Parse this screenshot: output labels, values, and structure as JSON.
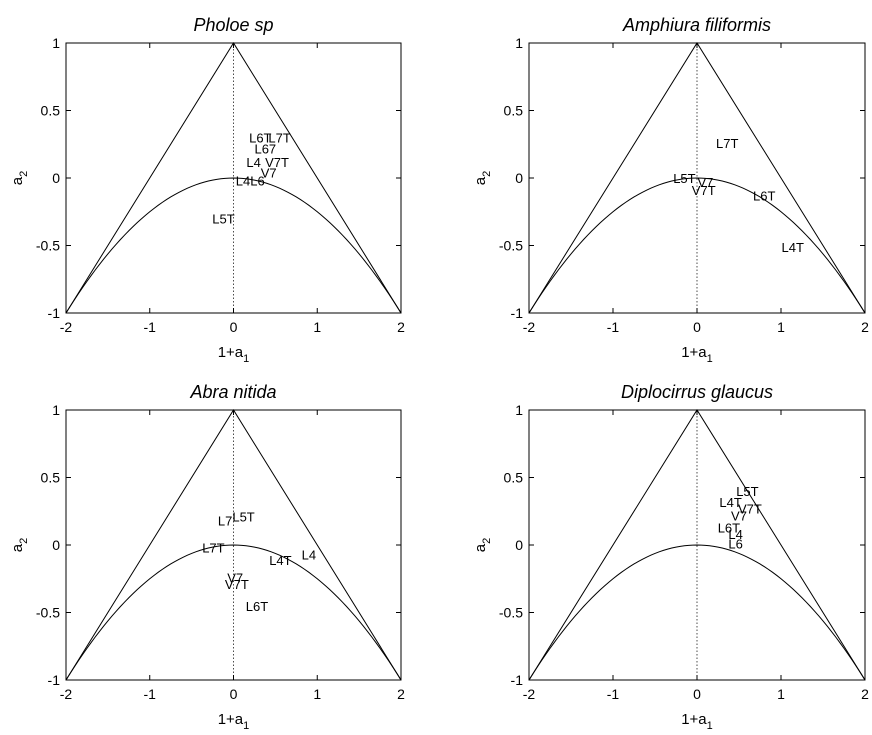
{
  "chart_data": [
    {
      "type": "scatter",
      "title": "Pholoe sp",
      "xlabel": "1+a1",
      "ylabel": "a2",
      "xlim": [
        -2,
        2
      ],
      "ylim": [
        -1,
        1
      ],
      "xticks": [
        "-2",
        "-1",
        "0",
        "1",
        "2"
      ],
      "yticks": [
        "-1",
        "-0.5",
        "0",
        "0.5",
        "1"
      ],
      "grid": false,
      "reference_curves": [
        "triangle",
        "parabola",
        "vertical-dotted-line-x0"
      ],
      "points": [
        {
          "label": "L6T",
          "x": 0.32,
          "y": 0.3
        },
        {
          "label": "L7T",
          "x": 0.55,
          "y": 0.3
        },
        {
          "label": "L67",
          "x": 0.38,
          "y": 0.22
        },
        {
          "label": "L4",
          "x": 0.24,
          "y": 0.12
        },
        {
          "label": "V7T",
          "x": 0.52,
          "y": 0.12
        },
        {
          "label": "V7",
          "x": 0.42,
          "y": 0.04
        },
        {
          "label": "L4L6",
          "x": 0.2,
          "y": -0.02
        },
        {
          "label": "L5T",
          "x": -0.12,
          "y": -0.3
        }
      ]
    },
    {
      "type": "scatter",
      "title": "Amphiura filiformis",
      "xlabel": "1+a1",
      "ylabel": "a2",
      "xlim": [
        -2,
        2
      ],
      "ylim": [
        -1,
        1
      ],
      "xticks": [
        "-2",
        "-1",
        "0",
        "1",
        "2"
      ],
      "yticks": [
        "-1",
        "-0.5",
        "0",
        "0.5",
        "1"
      ],
      "grid": false,
      "reference_curves": [
        "triangle",
        "parabola",
        "vertical-dotted-line-x0"
      ],
      "points": [
        {
          "label": "L7T",
          "x": 0.36,
          "y": 0.26
        },
        {
          "label": "L5T",
          "x": -0.15,
          "y": 0.0
        },
        {
          "label": "V7",
          "x": 0.1,
          "y": -0.03
        },
        {
          "label": "V7T",
          "x": 0.08,
          "y": -0.09
        },
        {
          "label": "L6T",
          "x": 0.8,
          "y": -0.13
        },
        {
          "label": "L4T",
          "x": 1.14,
          "y": -0.51
        }
      ]
    },
    {
      "type": "scatter",
      "title": "Abra nitida",
      "xlabel": "1+a1",
      "ylabel": "a2",
      "xlim": [
        -2,
        2
      ],
      "ylim": [
        -1,
        1
      ],
      "xticks": [
        "-2",
        "-1",
        "0",
        "1",
        "2"
      ],
      "yticks": [
        "-1",
        "-0.5",
        "0",
        "0.5",
        "1"
      ],
      "grid": false,
      "reference_curves": [
        "triangle",
        "parabola",
        "vertical-dotted-line-x0"
      ],
      "points": [
        {
          "label": "L7",
          "x": -0.1,
          "y": 0.18
        },
        {
          "label": "L5T",
          "x": 0.12,
          "y": 0.21
        },
        {
          "label": "L7T",
          "x": -0.24,
          "y": -0.02
        },
        {
          "label": "L4T",
          "x": 0.56,
          "y": -0.11
        },
        {
          "label": "L4",
          "x": 0.9,
          "y": -0.07
        },
        {
          "label": "V7",
          "x": 0.02,
          "y": -0.24
        },
        {
          "label": "V7T",
          "x": 0.04,
          "y": -0.29
        },
        {
          "label": "L6T",
          "x": 0.28,
          "y": -0.45
        }
      ]
    },
    {
      "type": "scatter",
      "title": "Diplocirrus glaucus",
      "xlabel": "1+a1",
      "ylabel": "a2",
      "xlim": [
        -2,
        2
      ],
      "ylim": [
        -1,
        1
      ],
      "xticks": [
        "-2",
        "-1",
        "0",
        "1",
        "2"
      ],
      "yticks": [
        "-1",
        "-0.5",
        "0",
        "0.5",
        "1"
      ],
      "grid": false,
      "reference_curves": [
        "triangle",
        "parabola",
        "vertical-dotted-line-x0"
      ],
      "points": [
        {
          "label": "L5T",
          "x": 0.6,
          "y": 0.4
        },
        {
          "label": "L4T",
          "x": 0.4,
          "y": 0.32
        },
        {
          "label": "V7T",
          "x": 0.63,
          "y": 0.27
        },
        {
          "label": "V7",
          "x": 0.5,
          "y": 0.22
        },
        {
          "label": "L6T",
          "x": 0.38,
          "y": 0.13
        },
        {
          "label": "L4",
          "x": 0.46,
          "y": 0.08
        },
        {
          "label": "L6",
          "x": 0.46,
          "y": 0.01
        }
      ]
    }
  ]
}
